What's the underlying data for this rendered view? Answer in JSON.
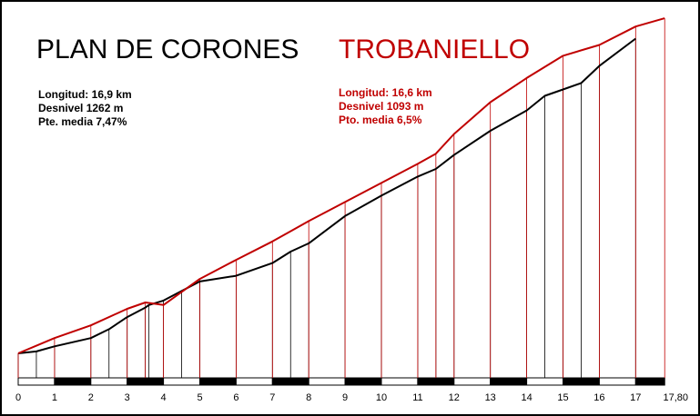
{
  "chart_data": {
    "type": "line",
    "xlabel": "",
    "ylabel": "",
    "xlim": [
      0,
      17.8
    ],
    "grid": false,
    "x_ticks": [
      "0",
      "1",
      "2",
      "3",
      "4",
      "5",
      "6",
      "7",
      "8",
      "9",
      "10",
      "11",
      "12",
      "13",
      "14",
      "15",
      "16",
      "17",
      "17,80"
    ],
    "series": [
      {
        "name": "PLAN DE CORONES",
        "color": "#000000",
        "stats": [
          "Longitud: 16,9 km",
          "Desnivel 1262 m",
          "Pte. media 7,47%"
        ],
        "x": [
          0,
          0.5,
          1,
          2,
          2.5,
          3,
          3.5,
          3.6,
          4,
          4.5,
          5,
          6,
          7,
          7.5,
          8,
          9,
          10,
          11,
          11.5,
          12,
          13,
          14,
          14.5,
          15,
          15.5,
          16,
          17
        ],
        "y": [
          0,
          3,
          11,
          24,
          38,
          57,
          72,
          76,
          83,
          98,
          113,
          122,
          142,
          160,
          173,
          216,
          248,
          278,
          290,
          312,
          350,
          382,
          405,
          415,
          425,
          452,
          495
        ]
      },
      {
        "name": "TROBANIELLO",
        "color": "#c00000",
        "stats": [
          "Longitud: 16,6 km",
          "Desnivel 1093 m",
          "Pto. media 6,5%"
        ],
        "x": [
          0,
          1,
          2,
          3,
          3.5,
          4,
          5,
          6,
          7,
          8,
          9,
          10,
          11,
          11.5,
          12,
          13,
          14,
          15,
          16,
          17,
          17.8
        ],
        "y": [
          0,
          24,
          44,
          70,
          80,
          76,
          117,
          147,
          176,
          208,
          238,
          268,
          298,
          314,
          345,
          395,
          433,
          468,
          485,
          514,
          527
        ]
      }
    ]
  }
}
